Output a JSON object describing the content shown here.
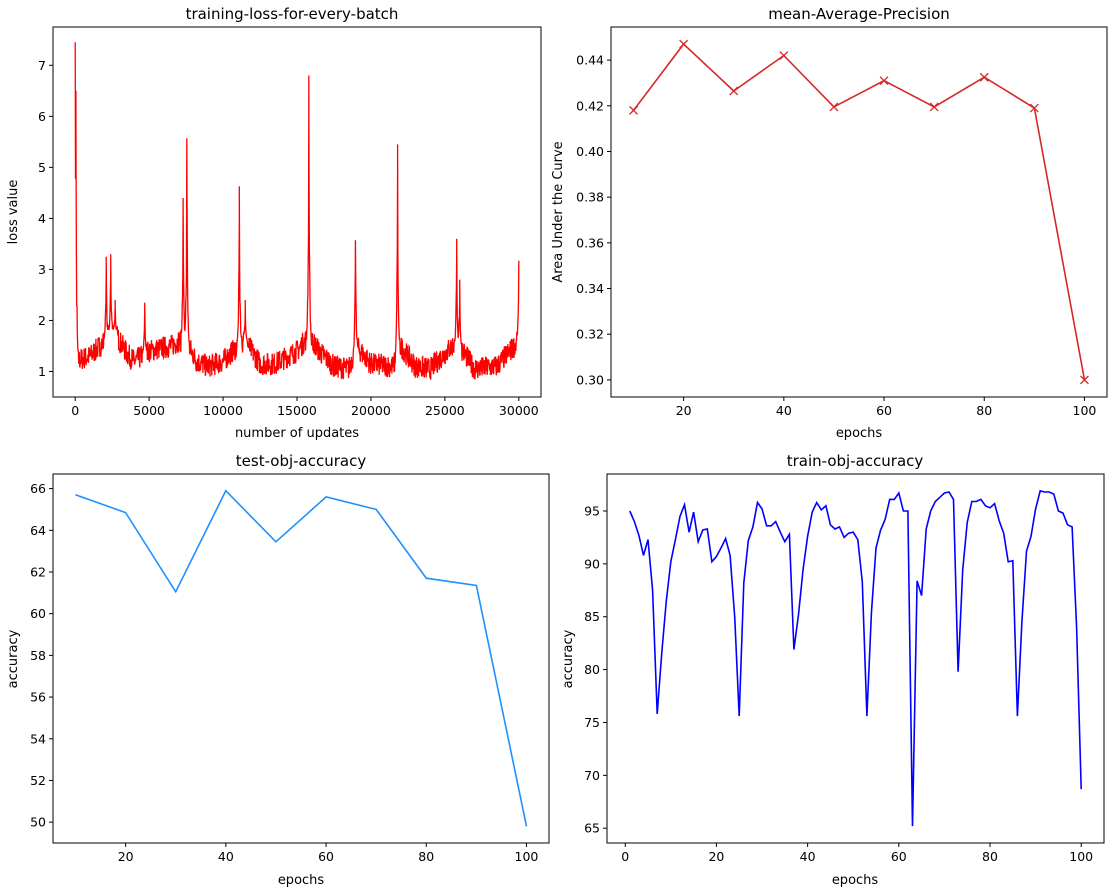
{
  "chart_data": [
    {
      "type": "line",
      "title": "training-loss-for-every-batch",
      "xlabel": "number of updates",
      "ylabel": "loss value",
      "xlim": [
        -1500,
        31500
      ],
      "ylim": [
        0.5,
        7.75
      ],
      "xticks": [
        0,
        5000,
        10000,
        15000,
        20000,
        25000,
        30000
      ],
      "yticks": [
        1,
        2,
        3,
        4,
        5,
        6,
        7
      ],
      "color": "#ff0000",
      "baseline": {
        "x": [
          0,
          1000,
          2000,
          2600,
          3500,
          4000,
          5000,
          6500,
          7000,
          7500,
          8200,
          9000,
          10000,
          11000,
          11500,
          12500,
          13500,
          15000,
          15800,
          16500,
          17500,
          18500,
          19000,
          20000,
          21500,
          22000,
          23000,
          24000,
          25500,
          26000,
          27000,
          28500,
          30000
        ],
        "y": [
          1.2,
          1.3,
          1.6,
          1.8,
          1.35,
          1.2,
          1.4,
          1.5,
          1.6,
          1.6,
          1.2,
          1.1,
          1.2,
          1.5,
          1.6,
          1.15,
          1.15,
          1.4,
          1.7,
          1.4,
          1.1,
          1.05,
          1.5,
          1.15,
          1.1,
          1.5,
          1.1,
          1.05,
          1.5,
          1.5,
          1.05,
          1.1,
          1.6
        ]
      },
      "spikes": [
        {
          "x": 0,
          "y": 7.45
        },
        {
          "x": 50,
          "y": 6.5
        },
        {
          "x": 2100,
          "y": 3.25
        },
        {
          "x": 2400,
          "y": 3.3
        },
        {
          "x": 2700,
          "y": 2.4
        },
        {
          "x": 4700,
          "y": 2.35
        },
        {
          "x": 7300,
          "y": 4.4
        },
        {
          "x": 7550,
          "y": 5.57
        },
        {
          "x": 11100,
          "y": 4.63
        },
        {
          "x": 11500,
          "y": 2.4
        },
        {
          "x": 15800,
          "y": 6.8
        },
        {
          "x": 18950,
          "y": 3.57
        },
        {
          "x": 21800,
          "y": 5.45
        },
        {
          "x": 25800,
          "y": 3.6
        },
        {
          "x": 26000,
          "y": 2.8
        },
        {
          "x": 30000,
          "y": 3.17
        }
      ]
    },
    {
      "type": "line",
      "title": "mean-Average-Precision",
      "xlabel": "epochs",
      "ylabel": "Area Under the Curve",
      "xlim": [
        5.5,
        104.5
      ],
      "ylim": [
        0.2925,
        0.4545
      ],
      "xticks": [
        20,
        40,
        60,
        80,
        100
      ],
      "yticks": [
        0.3,
        0.32,
        0.34,
        0.36,
        0.38,
        0.4,
        0.42,
        0.44
      ],
      "ytick_labels": [
        "0.30",
        "0.32",
        "0.34",
        "0.36",
        "0.38",
        "0.40",
        "0.42",
        "0.44"
      ],
      "marker": "x",
      "color": "#d62728",
      "x": [
        10,
        20,
        30,
        40,
        50,
        60,
        70,
        80,
        90,
        100
      ],
      "y": [
        0.418,
        0.447,
        0.4265,
        0.442,
        0.4195,
        0.431,
        0.4195,
        0.4325,
        0.419,
        0.3
      ]
    },
    {
      "type": "line",
      "title": "test-obj-accuracy",
      "xlabel": "epochs",
      "ylabel": "accuracy",
      "xlim": [
        5.5,
        104.5
      ],
      "ylim": [
        49.0,
        66.7
      ],
      "xticks": [
        20,
        40,
        60,
        80,
        100
      ],
      "yticks": [
        50,
        52,
        54,
        56,
        58,
        60,
        62,
        64,
        66
      ],
      "color": "#1e90ff",
      "x": [
        10,
        20,
        30,
        40,
        50,
        60,
        70,
        80,
        90,
        100
      ],
      "y": [
        65.7,
        64.85,
        61.05,
        65.9,
        63.45,
        65.6,
        65.0,
        61.7,
        61.35,
        49.8
      ]
    },
    {
      "type": "line",
      "title": "train-obj-accuracy",
      "xlabel": "epochs",
      "ylabel": "accuracy",
      "xlim": [
        -4,
        105
      ],
      "ylim": [
        63.6,
        98.5
      ],
      "xticks": [
        0,
        20,
        40,
        60,
        80,
        100
      ],
      "yticks": [
        65,
        70,
        75,
        80,
        85,
        90,
        95
      ],
      "color": "#0000ff",
      "x_start": 1,
      "y": [
        95,
        94,
        92.7,
        90.8,
        92.3,
        87.5,
        75.8,
        81.5,
        86.5,
        90.2,
        92.3,
        94.5,
        95.6,
        93,
        94.9,
        92.1,
        93.2,
        93.3,
        90.2,
        90.7,
        91.5,
        92.4,
        90.8,
        85,
        75.6,
        88.2,
        92.2,
        93.5,
        95.8,
        95.2,
        93.6,
        93.6,
        94,
        93,
        92.1,
        92.8,
        81.9,
        85.2,
        89.5,
        92.6,
        94.9,
        95.8,
        95.1,
        95.5,
        93.7,
        93.3,
        93.5,
        92.5,
        92.9,
        93,
        92.3,
        88.3,
        75.6,
        85.5,
        91.5,
        93.2,
        94.2,
        96.1,
        96.1,
        96.7,
        95,
        95,
        65.2,
        88.4,
        87,
        93.3,
        95,
        95.9,
        96.3,
        96.7,
        96.8,
        96.1,
        79.8,
        89.4,
        93.9,
        95.9,
        95.9,
        96.1,
        95.5,
        95.3,
        95.7,
        94.1,
        92.9,
        90.2,
        90.3,
        75.6,
        84.5,
        91.2,
        92.6,
        95.2,
        96.9,
        96.8,
        96.8,
        96.6,
        95,
        94.8,
        93.7,
        93.5,
        84,
        68.7
      ]
    }
  ]
}
